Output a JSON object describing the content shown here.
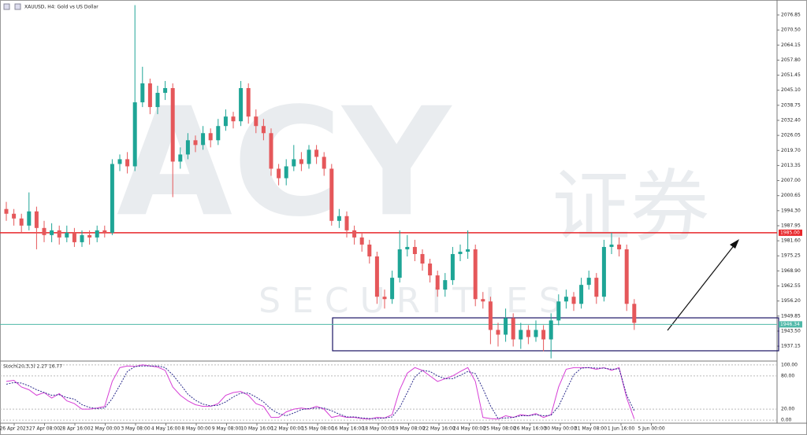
{
  "chart_data": [
    {
      "type": "candlestick",
      "title": "XAUUSD, H4: Gold vs US Dollar",
      "watermark": {
        "brand": "ACY",
        "cn": "证券",
        "sub": "S E C U R I T I E S"
      },
      "time_labels": [
        "26 Apr 2023",
        "27 Apr 08:00",
        "28 Apr 16:00",
        "2 May 00:00",
        "3 May 08:00",
        "4 May 16:00",
        "8 May 00:00",
        "9 May 08:00",
        "10 May 16:00",
        "12 May 00:00",
        "15 May 08:00",
        "16 May 16:00",
        "18 May 00:00",
        "19 May 08:00",
        "22 May 16:00",
        "24 May 00:00",
        "25 May 08:00",
        "26 May 16:00",
        "30 May 00:00",
        "31 May 08:00",
        "1 Jun 16:00",
        "5 Jun 00:00"
      ],
      "open": [
        1995,
        1993,
        1991,
        1988,
        1994,
        1987,
        1984,
        1986,
        1983,
        1985,
        1981,
        1984,
        1983,
        1986,
        1985,
        2014,
        2016,
        2013,
        2040,
        2048,
        2038,
        2044,
        2046,
        2015,
        2018,
        2024,
        2022,
        2027,
        2024,
        2030,
        2034,
        2032,
        2046,
        2034,
        2030,
        2027,
        2012,
        2008,
        2013,
        2016,
        2014,
        2020,
        2017,
        2012,
        1990,
        1992,
        1986,
        1983,
        1980,
        1975,
        1958,
        1957,
        1966,
        1978,
        1979,
        1976,
        1972,
        1967,
        1961,
        1965,
        1976,
        1977,
        1978,
        1957,
        1956,
        1944,
        1942,
        1949,
        1940,
        1944,
        1941,
        1944,
        1940,
        1948,
        1956,
        1958,
        1955,
        1963,
        1966,
        1958,
        1979,
        1980,
        1978,
        1955
      ],
      "high": [
        1998,
        1995,
        1993,
        2002,
        1996,
        1990,
        1989,
        1988,
        1988,
        1987,
        1986,
        1986,
        1988,
        1988,
        2016,
        2018,
        2019,
        2081,
        2055,
        2050,
        2047,
        2049,
        2048,
        2021,
        2027,
        2026,
        2030,
        2029,
        2033,
        2037,
        2036,
        2049,
        2048,
        2037,
        2033,
        2029,
        2014,
        2016,
        2022,
        2019,
        2022,
        2022,
        2019,
        2014,
        1995,
        1994,
        1988,
        1985,
        1982,
        1977,
        1961,
        1969,
        1986,
        1984,
        1982,
        1978,
        1974,
        1969,
        1968,
        1979,
        1980,
        1986,
        1980,
        1960,
        1958,
        1947,
        1953,
        1951,
        1947,
        1946,
        1948,
        1946,
        1951,
        1959,
        1961,
        1960,
        1966,
        1969,
        1968,
        1982,
        1985,
        1983,
        1980,
        1957
      ],
      "low": [
        1990,
        1988,
        1985,
        1986,
        1978,
        1981,
        1981,
        1980,
        1981,
        1979,
        1979,
        1980,
        1981,
        1983,
        1984,
        2011,
        2010,
        2011,
        2038,
        2035,
        2035,
        2041,
        2000,
        2012,
        2016,
        2019,
        2020,
        2021,
        2022,
        2028,
        2029,
        2030,
        2031,
        2027,
        2024,
        2009,
        2005,
        2005,
        2011,
        2011,
        2012,
        2014,
        2009,
        1988,
        1987,
        1983,
        1980,
        1977,
        1972,
        1955,
        1953,
        1955,
        1964,
        1975,
        1973,
        1969,
        1964,
        1958,
        1958,
        1963,
        1973,
        1974,
        1954,
        1953,
        1938,
        1937,
        1939,
        1937,
        1936,
        1938,
        1939,
        1935,
        1932,
        1946,
        1953,
        1952,
        1953,
        1961,
        1955,
        1956,
        1976,
        1975,
        1952,
        1944
      ],
      "close": [
        1993,
        1991,
        1988,
        1994,
        1987,
        1984,
        1986,
        1983,
        1985,
        1981,
        1984,
        1983,
        1986,
        1985,
        2014,
        2016,
        2013,
        2040,
        2048,
        2038,
        2044,
        2046,
        2015,
        2018,
        2024,
        2022,
        2027,
        2024,
        2030,
        2034,
        2032,
        2046,
        2034,
        2030,
        2027,
        2012,
        2008,
        2013,
        2016,
        2014,
        2020,
        2017,
        2012,
        1990,
        1992,
        1986,
        1983,
        1980,
        1975,
        1958,
        1957,
        1966,
        1978,
        1979,
        1976,
        1972,
        1967,
        1961,
        1965,
        1976,
        1977,
        1978,
        1957,
        1956,
        1944,
        1942,
        1949,
        1940,
        1944,
        1941,
        1944,
        1940,
        1948,
        1956,
        1958,
        1955,
        1963,
        1966,
        1958,
        1979,
        1980,
        1978,
        1955,
        1947
      ],
      "up_color": "#1ea596",
      "down_color": "#e5575a",
      "ylim": [
        1931.2,
        2081.5
      ],
      "yticks": [
        {
          "value": 2076.85,
          "label": "2076.85"
        },
        {
          "value": 2070.5,
          "label": "2070.50"
        },
        {
          "value": 2064.15,
          "label": "2064.15"
        },
        {
          "value": 2057.8,
          "label": "2057.80"
        },
        {
          "value": 2051.45,
          "label": "2051.45"
        },
        {
          "value": 2045.1,
          "label": "2045.10"
        },
        {
          "value": 2038.75,
          "label": "2038.75"
        },
        {
          "value": 2032.4,
          "label": "2032.40"
        },
        {
          "value": 2026.05,
          "label": "2026.05"
        },
        {
          "value": 2019.7,
          "label": "2019.70"
        },
        {
          "value": 2013.35,
          "label": "2013.35"
        },
        {
          "value": 2007,
          "label": "2007.00"
        },
        {
          "value": 2000.65,
          "label": "2000.65"
        },
        {
          "value": 1994.3,
          "label": "1994.30"
        },
        {
          "value": 1987.95,
          "label": "1987.95"
        },
        {
          "value": 1981.6,
          "label": "1981.60"
        },
        {
          "value": 1975.25,
          "label": "1975.25"
        },
        {
          "value": 1968.9,
          "label": "1968.90"
        },
        {
          "value": 1962.55,
          "label": "1962.55"
        },
        {
          "value": 1956.2,
          "label": "1956.20"
        },
        {
          "value": 1949.85,
          "label": "1949.85"
        },
        {
          "value": 1943.5,
          "label": "1943.50"
        },
        {
          "value": 1937.15,
          "label": "1937.15"
        }
      ],
      "price_lines": [
        {
          "value": 1985,
          "label": "1985.00",
          "color": "#e8262a"
        },
        {
          "value": 1946.34,
          "label": "1946.34",
          "color": "#4fb8a8"
        }
      ],
      "zone": [
        1935.2,
        1949.1
      ]
    },
    {
      "type": "line",
      "title": "Stoch(20,3,3) 2.27 16.77",
      "series": [
        {
          "color": "#d63fd6",
          "dash": false,
          "values": [
            70,
            72,
            60,
            55,
            45,
            50,
            40,
            48,
            35,
            30,
            20,
            20,
            22,
            25,
            70,
            95,
            98,
            97,
            100,
            98,
            96,
            90,
            60,
            45,
            35,
            28,
            25,
            25,
            30,
            45,
            50,
            52,
            45,
            30,
            25,
            5,
            5,
            15,
            20,
            22,
            20,
            25,
            20,
            5,
            8,
            5,
            5,
            3,
            2,
            5,
            4,
            10,
            55,
            85,
            95,
            90,
            80,
            70,
            75,
            80,
            88,
            95,
            70,
            5,
            3,
            2,
            8,
            5,
            10,
            8,
            12,
            5,
            10,
            60,
            92,
            95,
            95,
            95,
            92,
            95,
            90,
            95,
            40,
            2.27
          ]
        },
        {
          "color": "#2b2b8c",
          "dash": true,
          "values": [
            65,
            68,
            67,
            62,
            55,
            50,
            45,
            46,
            41,
            38,
            28,
            23,
            21,
            22,
            39,
            63,
            88,
            97,
            98,
            98,
            98,
            95,
            82,
            65,
            47,
            36,
            29,
            26,
            27,
            33,
            42,
            49,
            49,
            42,
            33,
            20,
            12,
            8,
            13,
            19,
            21,
            22,
            22,
            17,
            11,
            6,
            6,
            4,
            3,
            3,
            4,
            6,
            23,
            50,
            78,
            90,
            88,
            80,
            75,
            75,
            81,
            88,
            84,
            57,
            26,
            3,
            4,
            5,
            8,
            8,
            10,
            8,
            9,
            25,
            54,
            82,
            94,
            95,
            94,
            94,
            92,
            93,
            45,
            16.77
          ]
        }
      ],
      "ylim": [
        -4,
        104
      ],
      "yticks": [
        {
          "value": 100,
          "label": "100.00"
        },
        {
          "value": 80,
          "label": "80.00"
        },
        {
          "value": 20,
          "label": "20.00"
        },
        {
          "value": 0,
          "label": "0.00"
        }
      ]
    }
  ]
}
